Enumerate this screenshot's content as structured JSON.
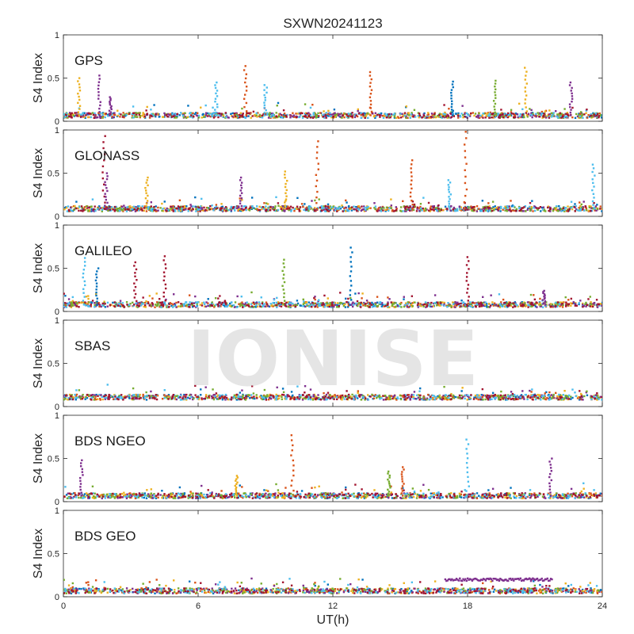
{
  "watermark": "IONISE",
  "chart_data": {
    "type": "scatter",
    "title": "SXWN20241123",
    "xlabel": "UT(h)",
    "ylabel": "S4 Index",
    "xlim": [
      0,
      24
    ],
    "ylim": [
      0,
      1
    ],
    "xticks": [
      0,
      6,
      12,
      18,
      24
    ],
    "xtick_labels": [
      "0",
      "6",
      "12",
      "18",
      "24"
    ],
    "yticks": [
      0,
      0.5,
      1
    ],
    "ytick_labels": [
      "0",
      "0.5",
      "1"
    ],
    "grid": false,
    "colors": [
      "#0072BD",
      "#D95319",
      "#EDB120",
      "#7E2F8E",
      "#77AC30",
      "#4DBEEE",
      "#A2142F"
    ],
    "panels": [
      {
        "label": "GPS",
        "baseline": 0.07,
        "spikes": [
          {
            "x": 0.7,
            "y": 0.5,
            "color": "#EDB120"
          },
          {
            "x": 1.6,
            "y": 0.53,
            "color": "#7E2F8E"
          },
          {
            "x": 2.1,
            "y": 0.28,
            "color": "#7E2F8E"
          },
          {
            "x": 6.8,
            "y": 0.45,
            "color": "#4DBEEE"
          },
          {
            "x": 8.1,
            "y": 0.64,
            "color": "#D95319"
          },
          {
            "x": 9.0,
            "y": 0.42,
            "color": "#4DBEEE"
          },
          {
            "x": 13.7,
            "y": 0.57,
            "color": "#D95319"
          },
          {
            "x": 17.3,
            "y": 0.46,
            "color": "#0072BD"
          },
          {
            "x": 19.2,
            "y": 0.47,
            "color": "#77AC30"
          },
          {
            "x": 20.6,
            "y": 0.62,
            "color": "#EDB120"
          },
          {
            "x": 22.6,
            "y": 0.45,
            "color": "#7E2F8E"
          }
        ]
      },
      {
        "label": "GLONASS",
        "baseline": 0.09,
        "spikes": [
          {
            "x": 1.8,
            "y": 0.93,
            "color": "#A2142F"
          },
          {
            "x": 1.9,
            "y": 0.5,
            "color": "#7E2F8E"
          },
          {
            "x": 3.7,
            "y": 0.45,
            "color": "#EDB120"
          },
          {
            "x": 7.9,
            "y": 0.45,
            "color": "#7E2F8E"
          },
          {
            "x": 9.9,
            "y": 0.52,
            "color": "#EDB120"
          },
          {
            "x": 11.3,
            "y": 0.87,
            "color": "#D95319"
          },
          {
            "x": 15.5,
            "y": 0.65,
            "color": "#D95319"
          },
          {
            "x": 17.2,
            "y": 0.42,
            "color": "#4DBEEE"
          },
          {
            "x": 17.9,
            "y": 0.98,
            "color": "#D95319"
          },
          {
            "x": 23.6,
            "y": 0.6,
            "color": "#4DBEEE"
          }
        ]
      },
      {
        "label": "GALILEO",
        "baseline": 0.08,
        "spikes": [
          {
            "x": 0.9,
            "y": 0.62,
            "color": "#4DBEEE"
          },
          {
            "x": 1.5,
            "y": 0.5,
            "color": "#0072BD"
          },
          {
            "x": 3.2,
            "y": 0.57,
            "color": "#A2142F"
          },
          {
            "x": 4.5,
            "y": 0.64,
            "color": "#A2142F"
          },
          {
            "x": 9.8,
            "y": 0.6,
            "color": "#77AC30"
          },
          {
            "x": 12.8,
            "y": 0.74,
            "color": "#0072BD"
          },
          {
            "x": 18.0,
            "y": 0.63,
            "color": "#A2142F"
          },
          {
            "x": 21.4,
            "y": 0.24,
            "color": "#7E2F8E"
          }
        ]
      },
      {
        "label": "SBAS",
        "baseline": 0.11,
        "spikes": []
      },
      {
        "label": "BDS NGEO",
        "baseline": 0.07,
        "spikes": [
          {
            "x": 0.8,
            "y": 0.48,
            "color": "#7E2F8E"
          },
          {
            "x": 7.7,
            "y": 0.3,
            "color": "#EDB120"
          },
          {
            "x": 10.2,
            "y": 0.77,
            "color": "#D95319"
          },
          {
            "x": 14.5,
            "y": 0.35,
            "color": "#77AC30"
          },
          {
            "x": 15.1,
            "y": 0.4,
            "color": "#D95319"
          },
          {
            "x": 18.0,
            "y": 0.72,
            "color": "#4DBEEE"
          },
          {
            "x": 21.7,
            "y": 0.5,
            "color": "#7E2F8E"
          }
        ]
      },
      {
        "label": "BDS GEO",
        "baseline": 0.07,
        "spikes": [],
        "bands": [
          {
            "x0": 17.0,
            "x1": 21.8,
            "y": 0.2,
            "color": "#7E2F8E"
          }
        ]
      }
    ]
  }
}
